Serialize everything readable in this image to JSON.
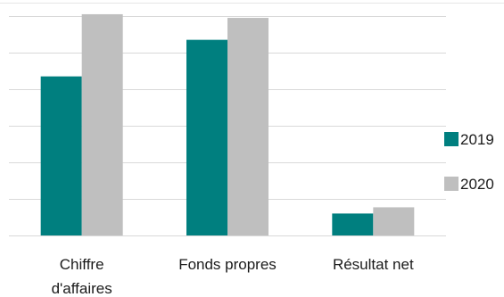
{
  "chart_data": {
    "type": "bar",
    "title": "",
    "xlabel": "",
    "ylabel": "",
    "categories": [
      [
        "Chiffre",
        "d'affaires"
      ],
      [
        "Fonds propres"
      ],
      [
        "Résultat net"
      ]
    ],
    "series": [
      {
        "name": "2019",
        "values": [
          4.35,
          5.35,
          0.6
        ],
        "color": "#007F7F"
      },
      {
        "name": "2020",
        "values": [
          6.05,
          5.95,
          0.77
        ],
        "color": "#BFBFBF"
      }
    ],
    "ylim": [
      0,
      6
    ],
    "grid": true,
    "legend_position": "right"
  }
}
